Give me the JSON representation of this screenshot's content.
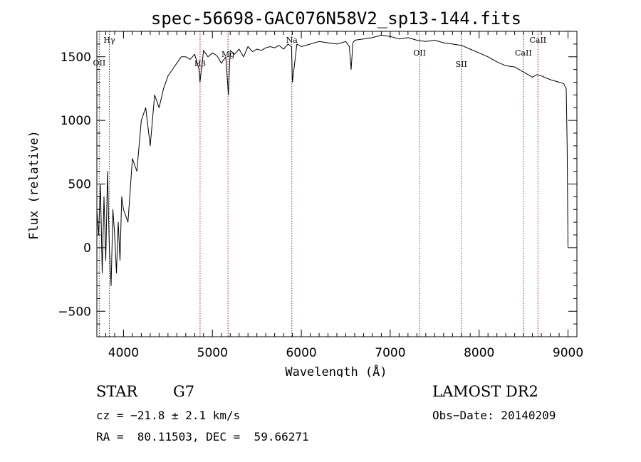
{
  "chart_data": {
    "type": "line",
    "title": "spec-56698-GAC076N58V2_sp13-144.fits",
    "xlabel": "Wavelength (Å)",
    "ylabel": "Flux (relative)",
    "xlim": [
      3700,
      9100
    ],
    "ylim": [
      -700,
      1700
    ],
    "x_ticks": [
      4000,
      5000,
      6000,
      7000,
      8000,
      9000
    ],
    "y_ticks": [
      -500,
      0,
      500,
      1000,
      1500
    ],
    "grid": false,
    "series": [
      {
        "x": [
          3700,
          3720,
          3740,
          3760,
          3780,
          3800,
          3820,
          3840,
          3860,
          3880,
          3900,
          3920,
          3940,
          3960,
          3980,
          4000,
          4050,
          4100,
          4150,
          4200,
          4250,
          4300,
          4350,
          4400,
          4450,
          4500,
          4550,
          4600,
          4650,
          4700,
          4750,
          4800,
          4850,
          4860,
          4900,
          4950,
          5000,
          5050,
          5100,
          5150,
          5180,
          5200,
          5250,
          5300,
          5350,
          5400,
          5450,
          5500,
          5550,
          5600,
          5650,
          5700,
          5750,
          5800,
          5850,
          5890,
          5900,
          5950,
          6000,
          6100,
          6200,
          6300,
          6400,
          6500,
          6540,
          6560,
          6580,
          6600,
          6700,
          6800,
          6900,
          7000,
          7100,
          7200,
          7300,
          7400,
          7500,
          7600,
          7700,
          7800,
          7900,
          8000,
          8100,
          8200,
          8300,
          8400,
          8500,
          8550,
          8600,
          8650,
          8700,
          8800,
          8900,
          8950,
          8980,
          8990,
          9000
        ],
        "y": [
          300,
          100,
          500,
          -200,
          400,
          -100,
          600,
          0,
          -300,
          300,
          100,
          -200,
          200,
          -100,
          400,
          300,
          200,
          700,
          600,
          1000,
          1100,
          800,
          1200,
          1100,
          1250,
          1350,
          1400,
          1450,
          1500,
          1500,
          1480,
          1520,
          1400,
          1300,
          1550,
          1500,
          1530,
          1510,
          1450,
          1500,
          1200,
          1550,
          1520,
          1560,
          1500,
          1580,
          1540,
          1560,
          1550,
          1570,
          1580,
          1570,
          1590,
          1560,
          1600,
          1580,
          1300,
          1600,
          1580,
          1600,
          1620,
          1610,
          1600,
          1620,
          1580,
          1400,
          1610,
          1630,
          1640,
          1650,
          1670,
          1660,
          1640,
          1650,
          1630,
          1620,
          1630,
          1610,
          1600,
          1590,
          1560,
          1530,
          1500,
          1460,
          1430,
          1420,
          1380,
          1360,
          1340,
          1360,
          1350,
          1320,
          1300,
          1290,
          1250,
          800,
          0
        ]
      }
    ],
    "spectral_lines": [
      {
        "label": "Hγ",
        "x": 3840
      },
      {
        "label": "OII",
        "x": 3727
      },
      {
        "label": "Hβ",
        "x": 4861
      },
      {
        "label": "Mg",
        "x": 5175
      },
      {
        "label": "Na",
        "x": 5893
      },
      {
        "label": "OII",
        "x": 7330
      },
      {
        "label": "SII",
        "x": 7800
      },
      {
        "label": "CaII",
        "x": 8498
      },
      {
        "label": "CaII",
        "x": 8662
      }
    ]
  },
  "info": {
    "object_type": "STAR",
    "subclass": "G7",
    "cz": "cz = −21.8 ± 2.1 km/s",
    "coords": "RA =  80.11503, DEC =  59.66271",
    "survey": "LAMOST DR2",
    "obs_date": "Obs−Date: 20140209"
  }
}
